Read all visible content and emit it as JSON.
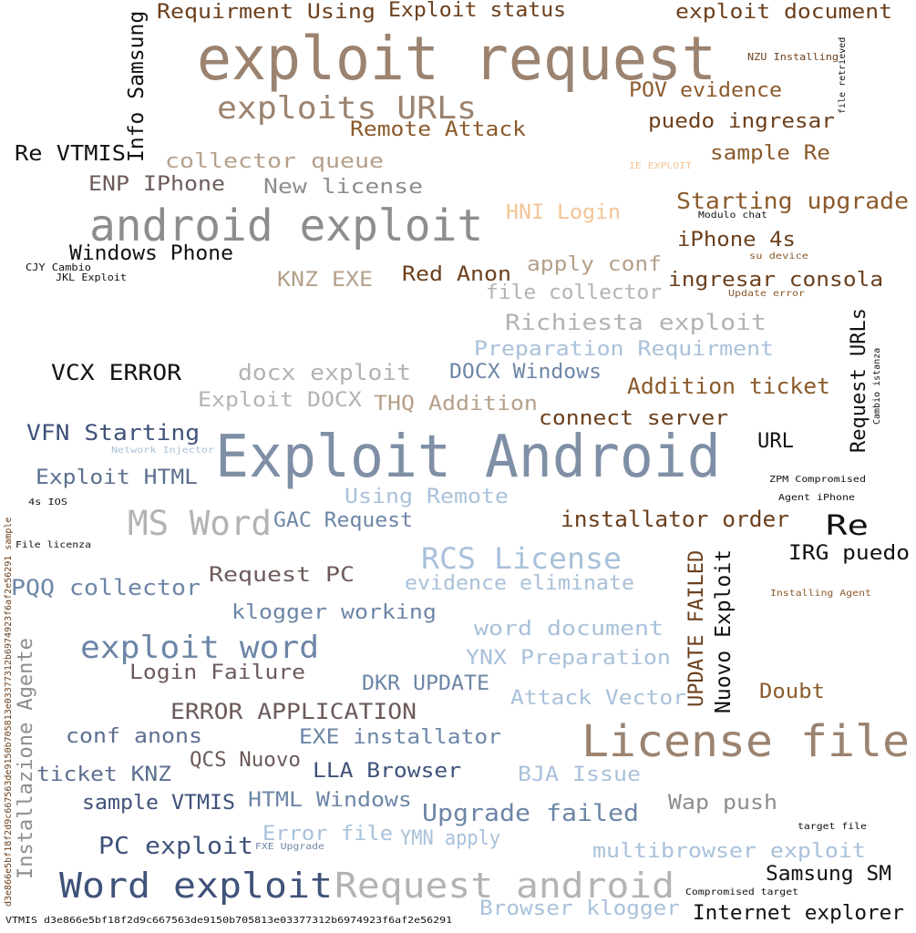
{
  "word_cloud": {
    "colors": {
      "brown": "#8b5a2b",
      "taupe": "#9b8370",
      "gray": "#8d8d8d",
      "lightgray": "#b3b3b3",
      "steel": "#7f8fa6",
      "blue": "#6d86a6",
      "slate": "#5b6f8f",
      "navy": "#3f5279",
      "lightblue": "#a9c1da",
      "tan": "#b5a08b",
      "mauve": "#6d5a5a",
      "peach": "#f3c495",
      "black": "#111111",
      "darkbrown": "#6b3f1c"
    },
    "words": [
      {
        "text": "exploit request",
        "c": "taupe"
      },
      {
        "text": "Requirment Using",
        "c": "darkbrown"
      },
      {
        "text": "Exploit status",
        "c": "darkbrown"
      },
      {
        "text": "exploit document",
        "c": "darkbrown"
      },
      {
        "text": "Info Samsung",
        "c": "black"
      },
      {
        "text": "NZU Installing",
        "c": "darkbrown"
      },
      {
        "text": "file retrieved",
        "c": "black"
      },
      {
        "text": "exploits URLs",
        "c": "taupe"
      },
      {
        "text": "POV evidence",
        "c": "brown"
      },
      {
        "text": "puedo ingresar",
        "c": "darkbrown"
      },
      {
        "text": "Remote Attack",
        "c": "brown"
      },
      {
        "text": "Re VTMIS",
        "c": "black"
      },
      {
        "text": "collector queue",
        "c": "tan"
      },
      {
        "text": "sample Re",
        "c": "brown"
      },
      {
        "text": "IE EXPLOIT",
        "c": "peach"
      },
      {
        "text": "ENP IPhone",
        "c": "mauve"
      },
      {
        "text": "New license",
        "c": "gray"
      },
      {
        "text": "Starting upgrade",
        "c": "brown"
      },
      {
        "text": "android exploit",
        "c": "gray"
      },
      {
        "text": "HNI Login",
        "c": "peach"
      },
      {
        "text": "Modulo chat",
        "c": "black"
      },
      {
        "text": "iPhone 4s",
        "c": "darkbrown"
      },
      {
        "text": "Windows Phone",
        "c": "black"
      },
      {
        "text": "su device",
        "c": "brown"
      },
      {
        "text": "CJY Cambio",
        "c": "black"
      },
      {
        "text": "JKL Exploit",
        "c": "black"
      },
      {
        "text": "KNZ EXE",
        "c": "tan"
      },
      {
        "text": "Red Anon",
        "c": "darkbrown"
      },
      {
        "text": "apply conf",
        "c": "tan"
      },
      {
        "text": "ingresar consola",
        "c": "darkbrown"
      },
      {
        "text": "file collector",
        "c": "lightgray"
      },
      {
        "text": "Update error",
        "c": "brown"
      },
      {
        "text": "Richiesta exploit",
        "c": "lightgray"
      },
      {
        "text": "Request URLs",
        "c": "black"
      },
      {
        "text": "Cambio istanza",
        "c": "black"
      },
      {
        "text": "Preparation Requirment",
        "c": "lightblue"
      },
      {
        "text": "VCX ERROR",
        "c": "black"
      },
      {
        "text": "docx exploit",
        "c": "lightgray"
      },
      {
        "text": "DOCX Windows",
        "c": "blue"
      },
      {
        "text": "Addition ticket",
        "c": "brown"
      },
      {
        "text": "Exploit DOCX",
        "c": "lightgray"
      },
      {
        "text": "THQ Addition",
        "c": "tan"
      },
      {
        "text": "connect server",
        "c": "darkbrown"
      },
      {
        "text": "VFN Starting",
        "c": "navy"
      },
      {
        "text": "Exploit Android",
        "c": "steel"
      },
      {
        "text": "URL",
        "c": "black"
      },
      {
        "text": "Network Injector",
        "c": "lightblue"
      },
      {
        "text": "Exploit HTML",
        "c": "slate"
      },
      {
        "text": "ZPM Compromised",
        "c": "black"
      },
      {
        "text": "Agent iPhone",
        "c": "black"
      },
      {
        "text": "4s IOS",
        "c": "black"
      },
      {
        "text": "Using Remote",
        "c": "lightblue"
      },
      {
        "text": "MS Word",
        "c": "lightgray"
      },
      {
        "text": "GAC Request",
        "c": "blue"
      },
      {
        "text": "installator order",
        "c": "darkbrown"
      },
      {
        "text": "Re",
        "c": "black"
      },
      {
        "text": "File licenza",
        "c": "black"
      },
      {
        "text": "RCS License",
        "c": "lightblue"
      },
      {
        "text": "UPDATE FAILED",
        "c": "darkbrown"
      },
      {
        "text": "Nuovo Exploit",
        "c": "black"
      },
      {
        "text": "IRG puedo",
        "c": "black"
      },
      {
        "text": "PQQ collector",
        "c": "blue"
      },
      {
        "text": "Request PC",
        "c": "mauve"
      },
      {
        "text": "evidence eliminate",
        "c": "lightblue"
      },
      {
        "text": "Installing Agent",
        "c": "brown"
      },
      {
        "text": "klogger working",
        "c": "blue"
      },
      {
        "text": "Installazione Agente",
        "c": "gray"
      },
      {
        "text": "word document",
        "c": "lightblue"
      },
      {
        "text": "exploit word",
        "c": "blue"
      },
      {
        "text": "YNX Preparation",
        "c": "lightblue"
      },
      {
        "text": "Login Failure",
        "c": "mauve"
      },
      {
        "text": "DKR UPDATE",
        "c": "blue"
      },
      {
        "text": "Attack Vector",
        "c": "lightblue"
      },
      {
        "text": "Doubt",
        "c": "brown"
      },
      {
        "text": "ERROR APPLICATION",
        "c": "mauve"
      },
      {
        "text": "License file",
        "c": "taupe"
      },
      {
        "text": "conf anons",
        "c": "slate"
      },
      {
        "text": "EXE installator",
        "c": "blue"
      },
      {
        "text": "QCS Nuovo",
        "c": "mauve"
      },
      {
        "text": "LLA Browser",
        "c": "navy"
      },
      {
        "text": "ticket KNZ",
        "c": "slate"
      },
      {
        "text": "BJA Issue",
        "c": "lightblue"
      },
      {
        "text": "sample VTMIS",
        "c": "navy"
      },
      {
        "text": "HTML Windows",
        "c": "blue"
      },
      {
        "text": "Wap push",
        "c": "gray"
      },
      {
        "text": "Upgrade failed",
        "c": "blue"
      },
      {
        "text": "Error file",
        "c": "lightblue"
      },
      {
        "text": "YMN apply",
        "c": "lightblue"
      },
      {
        "text": "target file",
        "c": "black"
      },
      {
        "text": "PC exploit",
        "c": "navy"
      },
      {
        "text": "FXE Upgrade",
        "c": "blue"
      },
      {
        "text": "multibrowser exploit",
        "c": "lightblue"
      },
      {
        "text": "Word exploit",
        "c": "navy"
      },
      {
        "text": "Request android",
        "c": "lightgray"
      },
      {
        "text": "Samsung SM",
        "c": "black"
      },
      {
        "text": "Compromised target",
        "c": "black"
      },
      {
        "text": "Browser klogger",
        "c": "lightblue"
      },
      {
        "text": "Internet explorer",
        "c": "black"
      },
      {
        "text": "VTMIS d3e866e5bf18f2d9c667563de9150b705813e03377312b6974923f6af2e56291",
        "c": "black"
      },
      {
        "text": "d3e866e5bf18f2d9c667563de9150b705813e03377312b6974923f6af2e56291 sample",
        "c": "darkbrown"
      }
    ]
  }
}
